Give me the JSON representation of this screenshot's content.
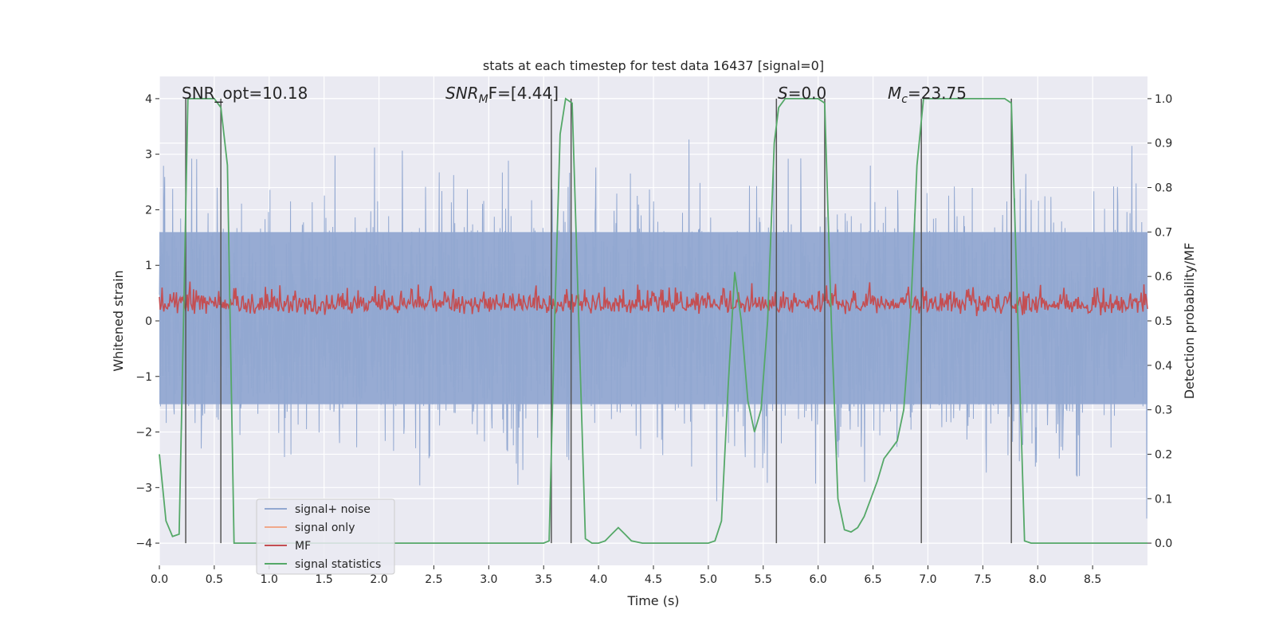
{
  "chart_data": {
    "type": "line",
    "title": "stats at each timestep for test data 16437 [signal=0]",
    "xlabel": "Time (s)",
    "ylabel": "Whitened strain",
    "y2label": "Detection probability/MF",
    "xlim": [
      0,
      9.0
    ],
    "ylim": [
      -4.4,
      4.4
    ],
    "y2lim": [
      -0.05,
      1.05
    ],
    "x_ticks": [
      0.0,
      0.5,
      1.0,
      1.5,
      2.0,
      2.5,
      3.0,
      3.5,
      4.0,
      4.5,
      5.0,
      5.5,
      6.0,
      6.5,
      7.0,
      7.5,
      8.0,
      8.5
    ],
    "x_tick_labels": [
      "0.0",
      "0.5",
      "1.0",
      "1.5",
      "2.0",
      "2.5",
      "3.0",
      "3.5",
      "4.0",
      "4.5",
      "5.0",
      "5.5",
      "6.0",
      "6.5",
      "7.0",
      "7.5",
      "8.0",
      "8.5"
    ],
    "y_ticks": [
      -4,
      -3,
      -2,
      -1,
      0,
      1,
      2,
      3,
      4
    ],
    "y_tick_labels": [
      "−4",
      "−3",
      "−2",
      "−1",
      "0",
      "1",
      "2",
      "3",
      "4"
    ],
    "y2_ticks": [
      0.0,
      0.1,
      0.2,
      0.3,
      0.4,
      0.5,
      0.6,
      0.7,
      0.8,
      0.9,
      1.0
    ],
    "y2_tick_labels": [
      "0.0",
      "0.1",
      "0.2",
      "0.3",
      "0.4",
      "0.5",
      "0.6",
      "0.7",
      "0.8",
      "0.9",
      "1.0"
    ],
    "grid": true,
    "legend_position": "lower-left",
    "annotations": {
      "snr_opt": "SNR_opt=10.18",
      "snr_mf_prefix": "SNR",
      "snr_mf_sub": "M",
      "snr_mf_suffix": "F=[4.44]",
      "s_prefix": "S",
      "s_suffix": "=0.0",
      "mc_prefix": "M",
      "mc_sub": "c",
      "mc_suffix": "=23.75"
    },
    "vertical_lines_x": [
      0.24,
      0.56,
      3.57,
      3.75,
      5.62,
      6.06,
      6.94,
      7.76
    ],
    "series": [
      {
        "name": "signal+ noise",
        "color": "#92a8d1",
        "kind": "noise",
        "y_range": [
          -3.8,
          3.9
        ],
        "dense_band": [
          -1.5,
          1.6
        ]
      },
      {
        "name": "signal only",
        "color": "#f0a88a",
        "kind": "flat",
        "values": []
      },
      {
        "name": "MF",
        "color": "#c44e52",
        "kind": "noise-right",
        "y2_range": [
          0.5,
          0.6
        ]
      },
      {
        "name": "signal statistics",
        "color": "#55a868",
        "kind": "line-right",
        "x": [
          0.0,
          0.06,
          0.12,
          0.18,
          0.22,
          0.26,
          0.3,
          0.36,
          0.42,
          0.5,
          0.56,
          0.62,
          0.68,
          0.75,
          1.0,
          2.0,
          3.0,
          3.5,
          3.55,
          3.6,
          3.65,
          3.7,
          3.76,
          3.82,
          3.88,
          3.94,
          4.0,
          4.06,
          4.12,
          4.18,
          4.24,
          4.3,
          4.4,
          4.6,
          5.0,
          5.06,
          5.12,
          5.18,
          5.24,
          5.3,
          5.36,
          5.42,
          5.48,
          5.54,
          5.6,
          5.64,
          5.7,
          5.76,
          5.82,
          5.9,
          6.0,
          6.06,
          6.12,
          6.18,
          6.24,
          6.3,
          6.36,
          6.42,
          6.48,
          6.54,
          6.6,
          6.66,
          6.72,
          6.78,
          6.84,
          6.9,
          6.96,
          7.0,
          7.1,
          7.3,
          7.5,
          7.7,
          7.76,
          7.82,
          7.88,
          7.94,
          8.0,
          8.5,
          9.0
        ],
        "y": [
          0.2,
          0.05,
          0.015,
          0.02,
          0.5,
          1.0,
          1.0,
          1.0,
          1.0,
          1.0,
          0.98,
          0.85,
          0.0,
          0.0,
          0.0,
          0.0,
          0.0,
          0.0,
          0.005,
          0.5,
          0.92,
          1.0,
          0.99,
          0.5,
          0.01,
          0.0,
          0.0,
          0.005,
          0.02,
          0.035,
          0.02,
          0.005,
          0.0,
          0.0,
          0.0,
          0.005,
          0.05,
          0.35,
          0.61,
          0.5,
          0.32,
          0.25,
          0.3,
          0.5,
          0.9,
          0.98,
          1.0,
          1.0,
          1.0,
          1.0,
          1.0,
          0.99,
          0.5,
          0.1,
          0.03,
          0.025,
          0.035,
          0.06,
          0.1,
          0.14,
          0.19,
          0.21,
          0.23,
          0.3,
          0.5,
          0.85,
          1.0,
          1.0,
          1.0,
          1.0,
          1.0,
          1.0,
          0.99,
          0.5,
          0.005,
          0.0,
          0.0,
          0.0,
          0.0
        ]
      }
    ]
  }
}
